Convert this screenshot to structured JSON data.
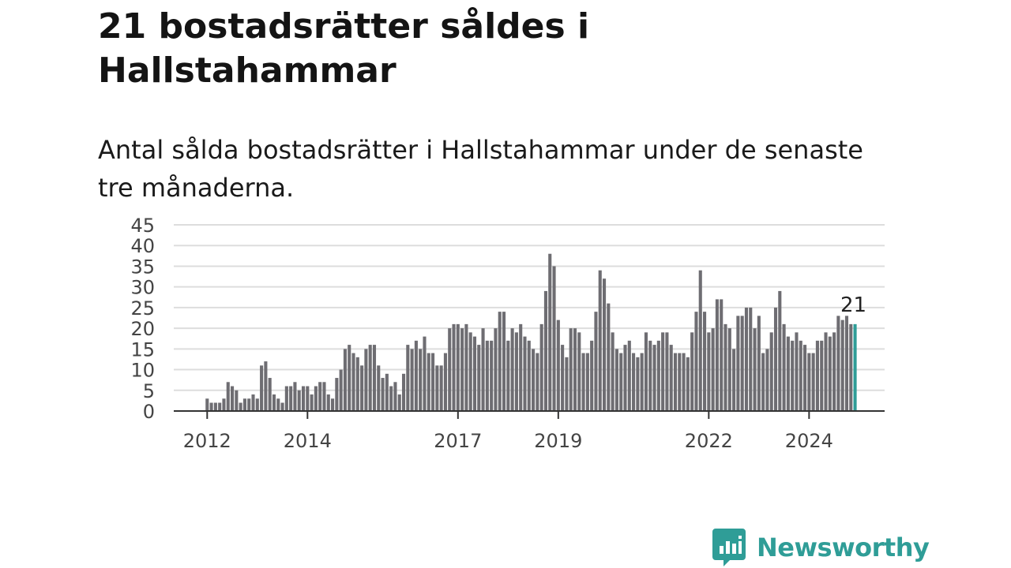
{
  "header": {
    "title": "21 bostadsrätter såldes i Hallstahammar",
    "subtitle": "Antal sålda bostadsrätter i Hallstahammar under de senaste tre månaderna."
  },
  "branding": {
    "logo_icon": "bar-chart-speech-bubble-icon",
    "name": "Newsworthy",
    "color": "#2f9d97"
  },
  "chart_data": {
    "type": "bar",
    "title": "21 bostadsrätter såldes i Hallstahammar",
    "subtitle": "Antal sålda bostadsrätter i Hallstahammar under de senaste tre månaderna.",
    "x_start": "2012-01",
    "x_step": "month",
    "values": [
      3,
      2,
      2,
      2,
      3,
      7,
      6,
      5,
      2,
      3,
      3,
      4,
      3,
      11,
      12,
      8,
      4,
      3,
      2,
      6,
      6,
      7,
      5,
      6,
      6,
      4,
      6,
      7,
      7,
      4,
      3,
      8,
      10,
      15,
      16,
      14,
      13,
      11,
      15,
      16,
      16,
      11,
      8,
      9,
      6,
      7,
      4,
      9,
      16,
      15,
      17,
      15,
      18,
      14,
      14,
      11,
      11,
      14,
      20,
      21,
      21,
      20,
      21,
      19,
      18,
      16,
      20,
      17,
      17,
      20,
      24,
      24,
      17,
      20,
      19,
      21,
      18,
      17,
      15,
      14,
      21,
      29,
      38,
      35,
      22,
      16,
      13,
      20,
      20,
      19,
      14,
      14,
      17,
      24,
      34,
      32,
      26,
      19,
      15,
      14,
      16,
      17,
      14,
      13,
      14,
      19,
      17,
      16,
      17,
      19,
      19,
      16,
      14,
      14,
      14,
      13,
      19,
      24,
      34,
      24,
      19,
      20,
      27,
      27,
      21,
      20,
      15,
      23,
      23,
      25,
      25,
      20,
      23,
      14,
      15,
      19,
      25,
      29,
      21,
      18,
      17,
      19,
      17,
      16,
      14,
      14,
      17,
      17,
      19,
      18,
      19,
      23,
      22,
      23,
      21,
      21
    ],
    "highlight_last": true,
    "highlight_label": "21",
    "tick_labels": [
      "2012",
      "2014",
      "2017",
      "2019",
      "2022",
      "2024"
    ],
    "y_ticks": [
      0,
      5,
      10,
      15,
      20,
      25,
      30,
      35,
      40,
      45
    ],
    "ylim": [
      0,
      45
    ],
    "grid": true,
    "colors": {
      "bar": "#6e6d72",
      "highlight": "#2f9d97",
      "grid": "#dddddd",
      "axis": "#333333"
    }
  }
}
